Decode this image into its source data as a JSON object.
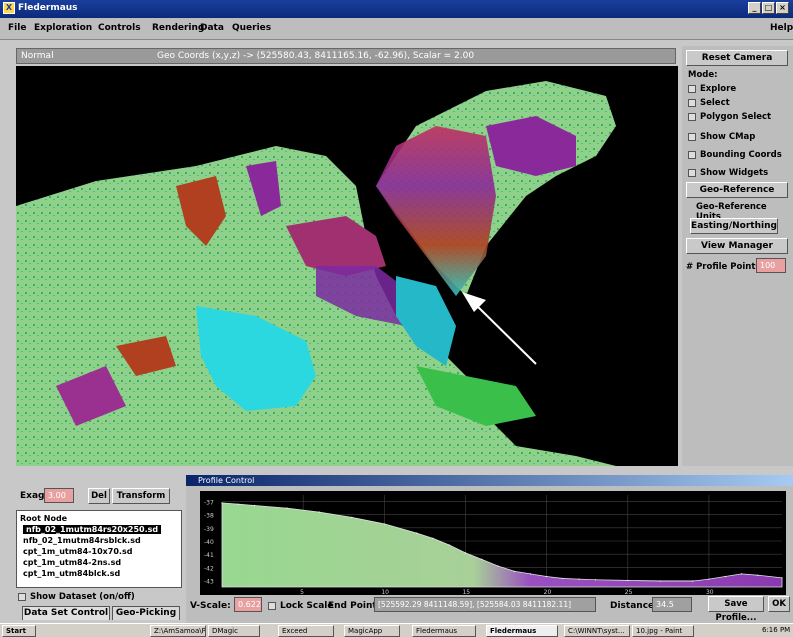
{
  "window": {
    "title": "Fledermaus"
  },
  "menu": [
    "File",
    "Exploration",
    "Controls",
    "Rendering",
    "Data",
    "Queries"
  ],
  "menu_help": "Help",
  "status": {
    "mode": "Normal",
    "coords": "Geo Coords (x,y,z) -> (525580.43, 8411165.16, -62.96), Scalar = 2.00"
  },
  "right_panel": {
    "reset_camera": "Reset Camera",
    "mode_label": "Mode:",
    "explore": "Explore",
    "select": "Select",
    "polygon_select": "Polygon Select",
    "show_cmap": "Show CMap",
    "bounding_coords": "Bounding Coords",
    "show_widgets": "Show Widgets",
    "geo_reference": "Geo-Reference",
    "geo_reference_units": "Geo-Reference Units",
    "easting_northing": "Easting/Northing",
    "view_manager": "View Manager",
    "profile_points_label": "# Profile Points",
    "profile_points_value": "100"
  },
  "left_panel": {
    "exag_label": "Exag",
    "exag_value": "3.00",
    "del": "Del",
    "transform": "Transform",
    "root": "Root Node",
    "nodes": [
      "nfb_02_1mutm84rs20x250.sd",
      "nfb_02_1mutm84rsblck.sd",
      "cpt_1m_utm84-10x70.sd",
      "cpt_1m_utm84-2ns.sd",
      "cpt_1m_utm84blck.sd"
    ],
    "show_dataset": "Show Dataset (on/off)",
    "tab1": "Data Set Control",
    "tab2": "Geo-Picking"
  },
  "profile": {
    "title": "Profile Control",
    "y_ticks": [
      "-37",
      "-38",
      "-39",
      "-40",
      "-41",
      "-42",
      "-43"
    ],
    "x_ticks": [
      "5",
      "10",
      "15",
      "20",
      "25",
      "30"
    ],
    "vscale_label": "V-Scale:",
    "vscale_value": "0.622",
    "lock_scale": "Lock Scale",
    "end_points_label": "End Points:",
    "end_points_value": "[525592.29 8411148.59], [525584.03 8411182.11]",
    "distance_label": "Distance:",
    "distance_value": "34.5",
    "save_profile": "Save Profile...",
    "ok": "OK"
  },
  "chart_data": {
    "type": "area",
    "xlim": [
      0,
      34.5
    ],
    "ylim": [
      -43.5,
      -36.5
    ],
    "x": [
      0,
      1,
      2,
      4,
      6,
      8,
      10,
      12,
      13,
      14,
      15,
      16,
      17,
      18,
      19,
      20,
      21,
      22,
      23,
      25,
      27,
      29,
      30,
      31,
      32,
      33,
      34.5
    ],
    "y": [
      -37.1,
      -37.2,
      -37.3,
      -37.5,
      -37.8,
      -38.2,
      -38.7,
      -39.4,
      -39.8,
      -40.3,
      -40.9,
      -41.4,
      -41.9,
      -42.3,
      -42.5,
      -42.7,
      -42.85,
      -42.9,
      -42.95,
      -43.0,
      -43.05,
      -43.05,
      -42.9,
      -42.7,
      -42.5,
      -42.6,
      -42.8
    ]
  },
  "taskbar": {
    "start": "Start",
    "items": [
      "Z:\\AmSamoa\\Pr...",
      "DMagic",
      "Exceed",
      "MagicApp",
      "Fledermaus",
      "Fledermaus",
      "C:\\WINNT\\syst...",
      "10.jpg - Paint"
    ],
    "clock": "6:16 PM"
  }
}
